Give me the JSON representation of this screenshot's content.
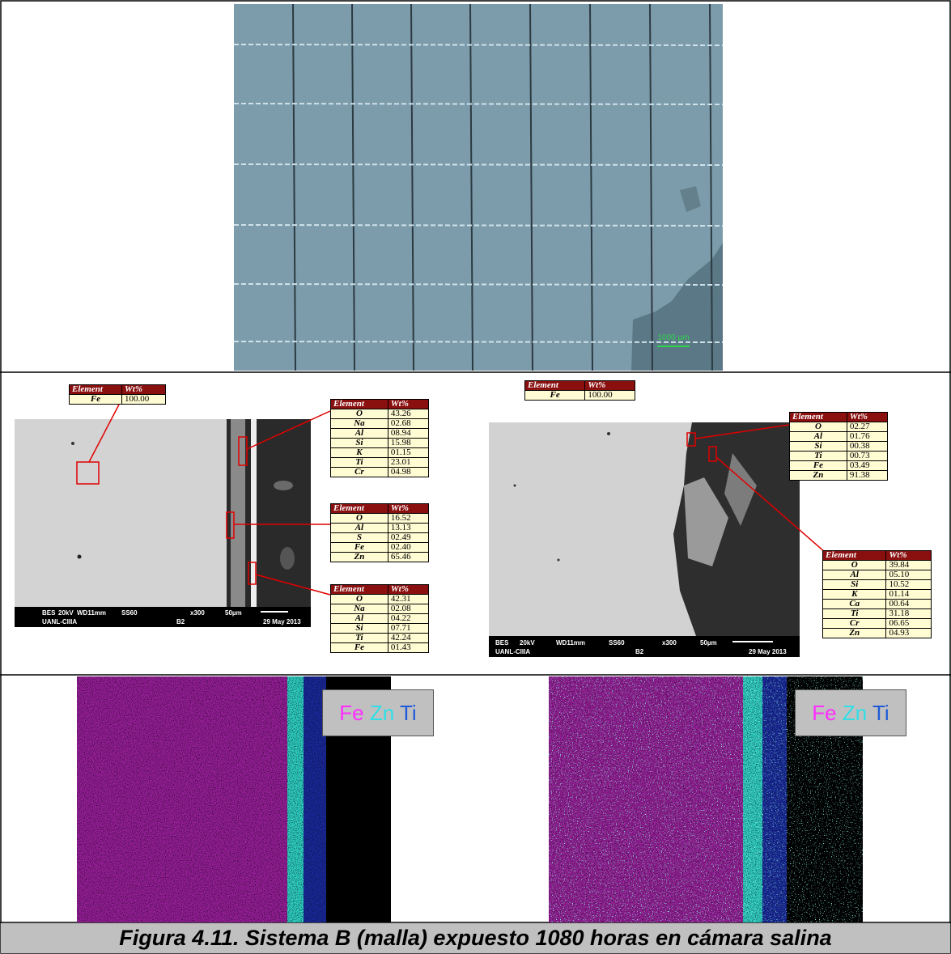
{
  "photo": {
    "scale_bar": "1000 µm"
  },
  "sem": [
    {
      "info": {
        "line1": [
          "BES",
          "20kV",
          "WD11mm",
          "SS60",
          "x300",
          "50µm"
        ],
        "line2": [
          "UANL-CIIIA",
          "B2",
          "29 May 2013"
        ]
      },
      "tables": [
        {
          "header": [
            "Element",
            "Wt%"
          ],
          "rows": [
            [
              "Fe",
              "100.00"
            ]
          ]
        },
        {
          "header": [
            "Element",
            "Wt%"
          ],
          "rows": [
            [
              "O",
              "43.26"
            ],
            [
              "Na",
              "02.68"
            ],
            [
              "Al",
              "08.94"
            ],
            [
              "Si",
              "15.98"
            ],
            [
              "K",
              "01.15"
            ],
            [
              "Ti",
              "23.01"
            ],
            [
              "Cr",
              "04.98"
            ]
          ]
        },
        {
          "header": [
            "Element",
            "Wt%"
          ],
          "rows": [
            [
              "O",
              "16.52"
            ],
            [
              "Al",
              "13.13"
            ],
            [
              "S",
              "02.49"
            ],
            [
              "Fe",
              "02.40"
            ],
            [
              "Zn",
              "65.46"
            ]
          ]
        },
        {
          "header": [
            "Element",
            "Wt%"
          ],
          "rows": [
            [
              "O",
              "42.31"
            ],
            [
              "Na",
              "02.08"
            ],
            [
              "Al",
              "04.22"
            ],
            [
              "Si",
              "07.71"
            ],
            [
              "Ti",
              "42.24"
            ],
            [
              "Fe",
              "01.43"
            ]
          ]
        }
      ]
    },
    {
      "info": {
        "line1": [
          "BES",
          "20kV",
          "WD11mm",
          "SS60",
          "x300",
          "50µm"
        ],
        "line2": [
          "UANL-CIIIA",
          "B2",
          "29 May 2013"
        ]
      },
      "tables": [
        {
          "header": [
            "Element",
            "Wt%"
          ],
          "rows": [
            [
              "Fe",
              "100.00"
            ]
          ]
        },
        {
          "header": [
            "Element",
            "Wt%"
          ],
          "rows": [
            [
              "O",
              "02.27"
            ],
            [
              "Al",
              "01.76"
            ],
            [
              "Si",
              "00.38"
            ],
            [
              "Ti",
              "00.73"
            ],
            [
              "Fe",
              "03.49"
            ],
            [
              "Zn",
              "91.38"
            ]
          ]
        },
        {
          "header": [
            "Element",
            "Wt%"
          ],
          "rows": [
            [
              "O",
              "39.84"
            ],
            [
              "Al",
              "05.10"
            ],
            [
              "Si",
              "10.52"
            ],
            [
              "K",
              "01.14"
            ],
            [
              "Ca",
              "00.64"
            ],
            [
              "Ti",
              "31.18"
            ],
            [
              "Cr",
              "06.65"
            ],
            [
              "Zn",
              "04.93"
            ]
          ]
        }
      ]
    }
  ],
  "maps": [
    {
      "legend": [
        "Fe",
        "Zn",
        "Ti"
      ]
    },
    {
      "legend": [
        "Fe",
        "Zn",
        "Ti"
      ]
    }
  ],
  "caption": "Figura 4.11. Sistema B (malla) expuesto 1080 horas en cámara salina"
}
